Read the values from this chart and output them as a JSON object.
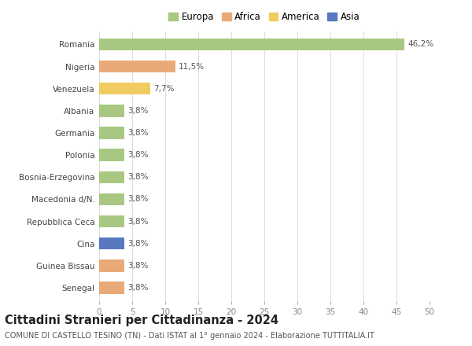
{
  "countries": [
    "Romania",
    "Nigeria",
    "Venezuela",
    "Albania",
    "Germania",
    "Polonia",
    "Bosnia-Erzegovina",
    "Macedonia d/N.",
    "Repubblica Ceca",
    "Cina",
    "Guinea Bissau",
    "Senegal"
  ],
  "values": [
    46.2,
    11.5,
    7.7,
    3.8,
    3.8,
    3.8,
    3.8,
    3.8,
    3.8,
    3.8,
    3.8,
    3.8
  ],
  "labels": [
    "46,2%",
    "11,5%",
    "7,7%",
    "3,8%",
    "3,8%",
    "3,8%",
    "3,8%",
    "3,8%",
    "3,8%",
    "3,8%",
    "3,8%",
    "3,8%"
  ],
  "colors": [
    "#a8c882",
    "#e8aa78",
    "#f0cc60",
    "#a8c882",
    "#a8c882",
    "#a8c882",
    "#a8c882",
    "#a8c882",
    "#a8c882",
    "#5878c0",
    "#e8aa78",
    "#e8aa78"
  ],
  "legend": [
    {
      "label": "Europa",
      "color": "#a8c882"
    },
    {
      "label": "Africa",
      "color": "#e8aa78"
    },
    {
      "label": "America",
      "color": "#f0cc60"
    },
    {
      "label": "Asia",
      "color": "#5878c0"
    }
  ],
  "title": "Cittadini Stranieri per Cittadinanza - 2024",
  "subtitle": "COMUNE DI CASTELLO TESINO (TN) - Dati ISTAT al 1° gennaio 2024 - Elaborazione TUTTITALIA.IT",
  "xlim": [
    0,
    50
  ],
  "xticks": [
    0,
    5,
    10,
    15,
    20,
    25,
    30,
    35,
    40,
    45,
    50
  ],
  "background_color": "#ffffff",
  "bar_height": 0.55,
  "label_fontsize": 7.5,
  "tick_fontsize": 7.5,
  "title_fontsize": 10.5,
  "subtitle_fontsize": 7.0
}
